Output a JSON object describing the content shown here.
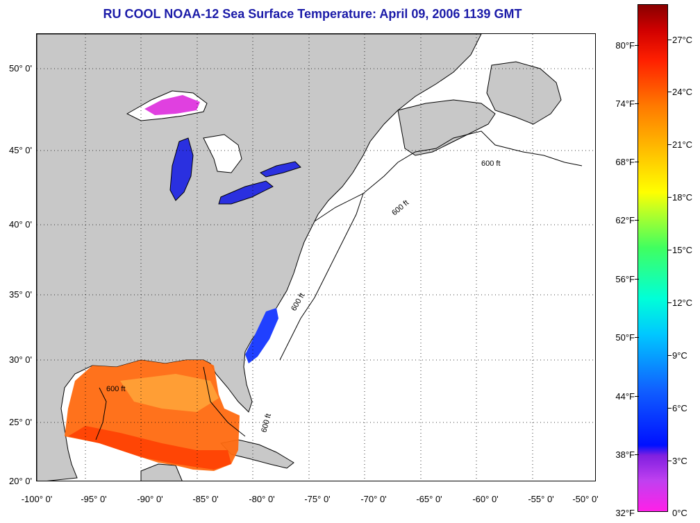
{
  "title": "RU COOL  NOAA-12  Sea Surface Temperature:  April 09, 2006 1139 GMT",
  "map": {
    "lat_labels": [
      "50° 0'",
      "45° 0'",
      "40° 0'",
      "35° 0'",
      "30° 0'",
      "25° 0'",
      "20° 0'"
    ],
    "lon_labels": [
      "-100° 0'",
      "-95° 0'",
      "-90° 0'",
      "-85° 0'",
      "-80° 0'",
      "-75° 0'",
      "-70° 0'",
      "-65° 0'",
      "-60° 0'",
      "-55° 0'",
      "-50° 0'"
    ],
    "contour_label": "600 ft",
    "colors": {
      "land": "#c8c8c8",
      "ocean": "#ffffff",
      "gulf_warm": "#ff6a10",
      "lake_cold": "#e040e0",
      "coast_cold": "#2040ff"
    }
  },
  "colorbar": {
    "fahrenheit": [
      "80°F",
      "74°F",
      "68°F",
      "62°F",
      "56°F",
      "50°F",
      "44°F",
      "38°F",
      "32°F"
    ],
    "celsius": [
      "27°C",
      "24°C",
      "21°C",
      "18°C",
      "15°C",
      "12°C",
      "9°C",
      "6°C",
      "3°C",
      "0°C"
    ]
  }
}
